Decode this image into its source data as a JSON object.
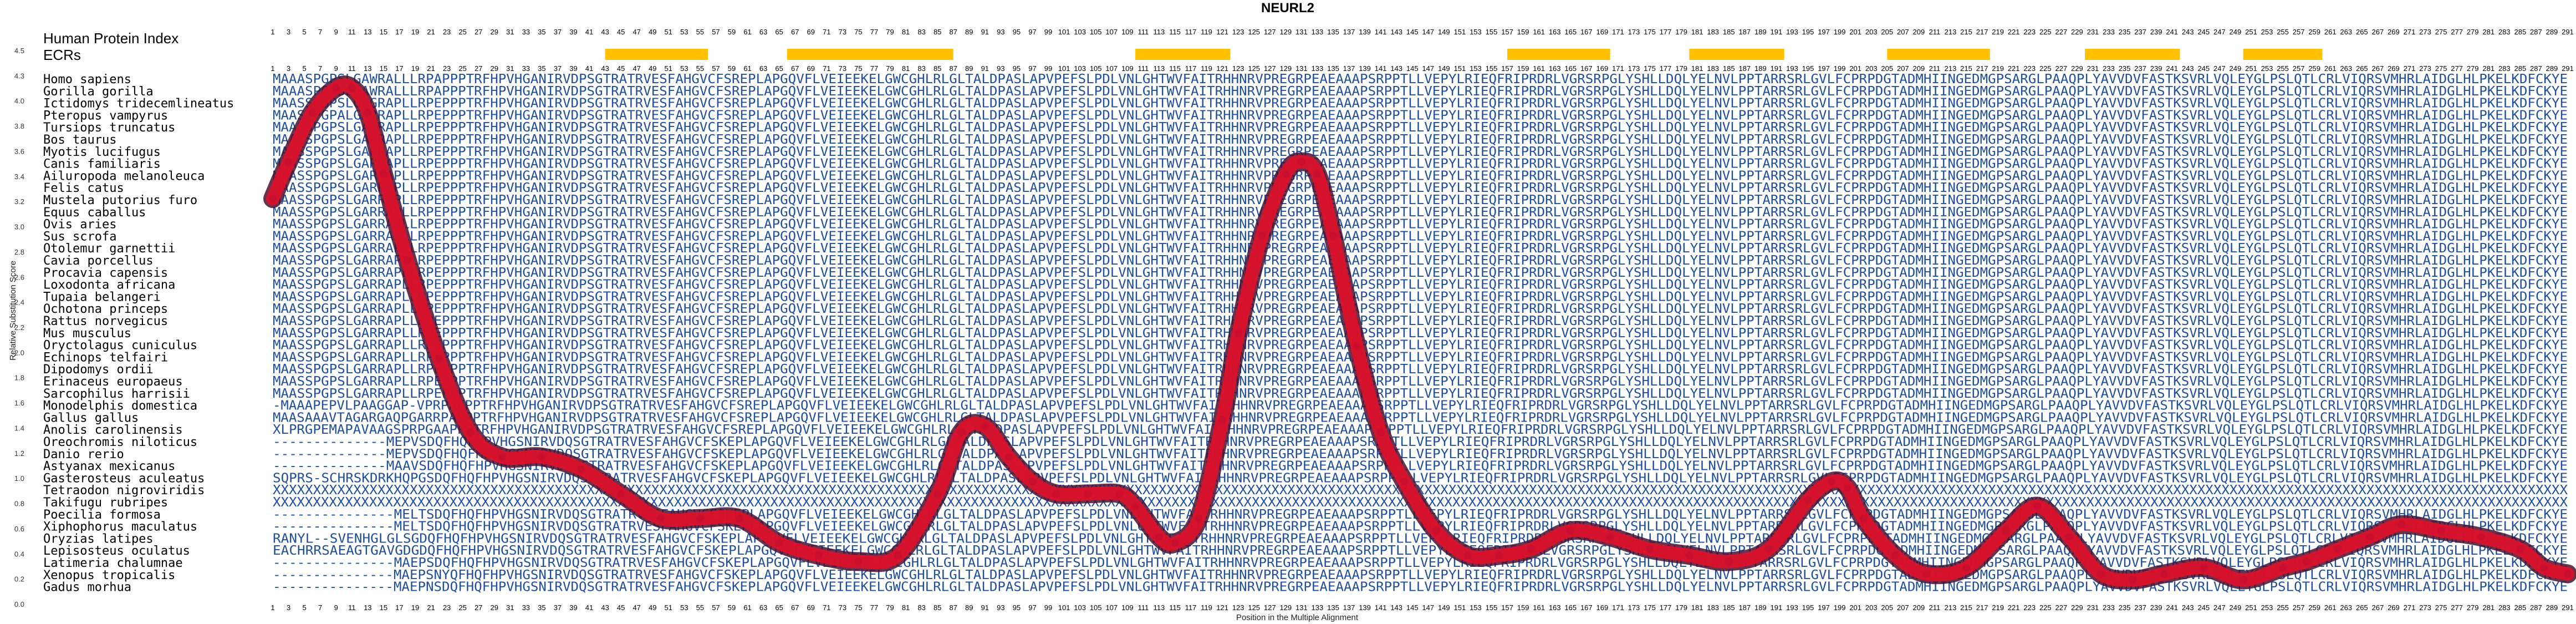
{
  "chart_data": {
    "type": "line",
    "title": "NEURL2",
    "xlabel": "Position in the Multiple Alignment",
    "ylabel": "Relative Substitution Score",
    "y_ticks": [
      "4.5",
      "4.3",
      "4.0",
      "3.8",
      "3.6",
      "3.4",
      "3.2",
      "3.0",
      "2.8",
      "2.6",
      "2.4",
      "2.2",
      "2.0",
      "1.8",
      "1.6",
      "1.4",
      "1.2",
      "1.0",
      "0.8",
      "0.6",
      "0.4",
      "0.2",
      "0.0"
    ],
    "ylim": [
      0,
      4.5
    ],
    "xlim": [
      1,
      291
    ],
    "labels": {
      "human_index": "Human Protein Index",
      "ecrs": "ECRs"
    },
    "ecr_regions": [
      [
        43,
        56
      ],
      [
        66,
        87
      ],
      [
        110,
        122
      ],
      [
        157,
        170
      ],
      [
        180,
        192
      ],
      [
        205,
        218
      ],
      [
        230,
        242
      ],
      [
        250,
        260
      ]
    ],
    "species": [
      "Homo sapiens",
      "Gorilla gorilla",
      "Ictidomys tridecemlineatus",
      "Pteropus vampyrus",
      "Tursiops truncatus",
      "Bos taurus",
      "Myotis lucifugus",
      "Canis familiaris",
      "Ailuropoda melanoleuca",
      "Felis catus",
      "Mustela putorius furo",
      "Equus caballus",
      "Ovis aries",
      "Sus scrofa",
      "Otolemur garnettii",
      "Cavia porcellus",
      "Procavia capensis",
      "Loxodonta africana",
      "Tupaia belangeri",
      "Ochotona princeps",
      "Rattus norvegicus",
      "Mus musculus",
      "Oryctolagus cuniculus",
      "Echinops telfairi",
      "Dipodomys ordii",
      "Erinaceus europaeus",
      "Sarcophilus harrisii",
      "Monodelphis domestica",
      "Gallus gallus",
      "Anolis carolinensis",
      "Oreochromis niloticus",
      "Danio rerio",
      "Astyanax mexicanus",
      "Gasterosteus aculeatus",
      "Tetraodon nigroviridis",
      "Takifugu rubripes",
      "Poecilia formosa",
      "Xiphophorus maculatus",
      "Oryzias latipes",
      "Lepisosteus oculatus",
      "Latimeria chalumnae",
      "Xenopus tropicalis",
      "Gadus morhua"
    ],
    "sequences": [
      "MAAASPGPSLGAWRALLLRPAPPPTRFHPVHGANIRVDPSGTRATRVESFAHGVCFSREPLAPGQVFLVEIEEKELGWCGHLRLGLTALDPASLAPVPEFSLPDLVNLGHTWVFAITRHHNRVPREGRPEAEAAAPSRPPTLLVEPYLRIEQFRIPRDRLVGRSRPGLYSHLLDQLYELNVLPPTARRSRLGVLFCPRPDGTADMHIINGEDMGPSARGLPAAQPLYAVVDVFASTKSVRLVQLEYGLPSLQTLCRLVIQRSVMHRLAIDGLHLPKELKDFCKYE",
      "MAAASPGPSLGAWRALLLRPAPPPTRFHPVHGANIRVDPSGTRATRVESFAHGVCFSREPLAPGQVFLVEIEEKELGWCGHLRLGLTALDPASLAPVPEFSLPDLVNLGHTWVFAITRHHNRVPREGRPEAEAAAPSRPPTLLVEPYLRIEQFRIPRDRLVGRSRPGLYSHLLDQLYELNVLPPTARRSRLGVLFCPRPDGTADMHIINGEDMGPSARGLPAAQPLYAVVDVFASTKSVRLVQLEYGLPSLQTLCRLVIQRSVMHRLAIDGLHLPKELKDFCKYE",
      "MAASSPGPSLGAGRAPLLRPEPPPTRFHPVHGANIRVDPSGTRATRVESFAHGVCFSREPLAPGQVFLVEIEEKELGWCGHLRLGLTALDPASLAPVPEFSLPDLVNLGHTWVFAITRHHNRVPREGRPEAEAAAPSRPPTLLVEPYLRIEQFRIPRDRLVGRSRPGLYSHLLDQLYELNVLPPTARRSRLGVLFCPRPDGTADMHIINGEDMGPSARGLPAAQPLYAVVDVFASTKSVRLVQLEYGLPSLQTLCRLVIQRSVMHRLAIDGLHLPKELKDFCKYE",
      "MAASSPGPALGARRAPLLRPEPPPTRFHPVHGANIRVDPSGTRATRVESFAHGVCFSREPLAPGQVFLVEIEEKELGWCGHLRLGLTALDPASLAPVPEFSLPDLVNLGHTWVFAITRHHNRVPREGRPEAEAAAPSRPPTLLVEPYLRIEQFRIPRDRLVGRSRPGLYSHLLDQLYELNVLPPTARRSRLGVLFCPRPDGTADMHIINGEDMGPSARGLPAAQPLYAVVDVFASTKSVRLVQLEYGLPSLQTLCRLVIQRSVMHRLAIDGLHLPKELKDFCKYE",
      "MAASSPGPSLGARRAPLLRPEPPPTRFHPVHGANIRVDPSGTRATRVESFAHGVCFSREPLAPGQVFLVEIEEKELGWCGHLRLGLTALDPASLAPVPEFSLPDLVNLGHTWVFAITRHHNRVPREGRPEAEAAAPSRPPTLLVEPYLRIEQFRIPRDRLVGRSRPGLYSHLLDQLYELNVLPPTARRSRLGVLFCPRPDGTADMHIINGEDMGPSARGLPAAQPLYAVVDVFASTKSVRLVQLEYGLPSLQTLCRLVIQRSVMHRLAIDGLHLPKELKDFCKYE",
      "MAASSPGPSLGARRAPLLRPEPPPTRFHPVHGANIRVDPSGTRATRVESFAHGVCFSREPLAPGQVFLVEIEEKELGWCGHLRLGLTALDPASLAPVPEFSLPDLVNLGHTWVFAITRHHNRVPREGRPEAEAAAPSRPPTLLVEPYLRIEQFRIPRDRLVGRSRPGLYSHLLDQLYELNVLPPTARRSRLGVLFCPRPDGTADMHIINGEDMGPSARGLPAAQPLYAVVDVFASTKSVRLVQLEYGLPSLQTLCRLVIQRSVMHRLAIDGLHLPKELKDFCKYE",
      "MAASSPGPSLGARRAPLLRPEPPPTRFHPVHGANIRVDPSGTRATRVESFAHGVCFSREPLAPGQVFLVEIEEKELGWCGHLRLGLTALDPASLAPVPEFSLPDLVNLGHTWVFAITRHHNRVPREGRPEAEAAAPSRPPTLLVEPYLRIEQFRIPRDRLVGRSRPGLYSHLLDQLYELNVLPPTARRSRLGVLFCPRPDGTADMHIINGEDMGPSARGLPAAQPLYAVVDVFASTKSVRLVQLEYGLPSLQTLCRLVIQRSVMHRLAIDGLHLPKELKDFCKYE",
      "MAASSPGPSLGARRAPLLRPEPPPTRFHPVHGANIRVDPSGTRATRVESFAHGVCFSREPLAPGQVFLVEIEEKELGWCGHLRLGLTALDPASLAPVPEFSLPDLVNLGHTWVFAITRHHNRVPREGRPEAEAAAPSRPPTLLVEPYLRIEQFRIPRDRLVGRSRPGLYSHLLDQLYELNVLPPTARRSRLGVLFCPRPDGTADMHIINGEDMGPSARGLPAAQPLYAVVDVFASTKSVRLVQLEYGLPSLQTLCRLVIQRSVMHRLAIDGLHLPKELKDFCKYE",
      "MAASSPGPSLGARRAPLLRPEPPPTRFHPVHGANIRVDPSGTRATRVESFAHGVCFSREPLAPGQVFLVEIEEKELGWCGHLRLGLTALDPASLAPVPEFSLPDLVNLGHTWVFAITRHHNRVPREGRPEAEAAAPSRPPTLLVEPYLRIEQFRIPRDRLVGRSRPGLYSHLLDQLYELNVLPPTARRSRLGVLFCPRPDGTADMHIINGEDMGPSARGLPAAQPLYAVVDVFASTKSVRLVQLEYGLPSLQTLCRLVIQRSVMHRLAIDGLHLPKELKDFCKYE",
      "MAASSPGPSLGARRAPLLRPEPPPTRFHPVHGANIRVDPSGTRATRVESFAHGVCFSREPLAPGQVFLVEIEEKELGWCGHLRLGLTALDPASLAPVPEFSLPDLVNLGHTWVFAITRHHNRVPREGRPEAEAAAPSRPPTLLVEPYLRIEQFRIPRDRLVGRSRPGLYSHLLDQLYELNVLPPTARRSRLGVLFCPRPDGTADMHIINGEDMGPSARGLPAAQPLYAVVDVFASTKSVRLVQLEYGLPSLQTLCRLVIQRSVMHRLAIDGLHLPKELKDFCKYE",
      "MAASSPGPSLGARRAPLLRPEPPPTRFHPVHGANIRVDPSGTRATRVESFAHGVCFSREPLAPGQVFLVEIEEKELGWCGHLRLGLTALDPASLAPVPEFSLPDLVNLGHTWVFAITRHHNRVPREGRPEAEAAAPSRPPTLLVEPYLRIEQFRIPRDRLVGRSRPGLYSHLLDQLYELNVLPPTARRSRLGVLFCPRPDGTADMHIINGEDMGPSARGLPAAQPLYAVVDVFASTKSVRLVQLEYGLPSLQTLCRLVIQRSVMHRLAIDGLHLPKELKDFCKYE",
      "MAASSPGPSLGARRAPLLRPEPPPTRFHPVHGANIRVDPSGTRATRVESFAHGVCFSREPLAPGQVFLVEIEEKELGWCGHLRLGLTALDPASLAPVPEFSLPDLVNLGHTWVFAITRHHNRVPREGRPEAEAAAPSRPPTLLVEPYLRIEQFRIPRDRLVGRSRPGLYSHLLDQLYELNVLPPTARRSRLGVLFCPRPDGTADMHIINGEDMGPSARGLPAAQPLYAVVDVFASTKSVRLVQLEYGLPSLQTLCRLVIQRSVMHRLAIDGLHLPKELKDFCKYE",
      "MAASSPGPSLGARRAPLLRPEPPPTRFHPVHGANIRVDPSGTRATRVESFAHGVCFSREPLAPGQVFLVEIEEKELGWCGHLRLGLTALDPASLAPVPEFSLPDLVNLGHTWVFAITRHHNRVPREGRPEAEAAAPSRPPTLLVEPYLRIEQFRIPRDRLVGRSRPGLYSHLLDQLYELNVLPPTARRSRLGVLFCPRPDGTADMHIINGEDMGPSARGLPAAQPLYAVVDVFASTKSVRLVQLEYGLPSLQTLCRLVIQRSVMHRLAIDGLHLPKELKDFCKYE",
      "MAASSPGPSLGARRAPLLRPEPPPTRFHPVHGANIRVDPSGTRATRVESFAHGVCFSREPLAPGQVFLVEIEEKELGWCGHLRLGLTALDPASLAPVPEFSLPDLVNLGHTWVFAITRHHNRVPREGRPEAEAAAPSRPPTLLVEPYLRIEQFRIPRDRLVGRSRPGLYSHLLDQLYELNVLPPTARRSRLGVLFCPRPDGTADMHIINGEDMGPSARGLPAAQPLYAVVDVFASTKSVRLVQLEYGLPSLQTLCRLVIQRSVMHRLAIDGLHLPKELKDFCKYE",
      "MAASSPGPSLGARRAPLLRPEPPPTRFHPVHGANIRVDPSGTRATRVESFAHGVCFSREPLAPGQVFLVEIEEKELGWCGHLRLGLTALDPASLAPVPEFSLPDLVNLGHTWVFAITRHHNRVPREGRPEAEAAAPSRPPTLLVEPYLRIEQFRIPRDRLVGRSRPGLYSHLLDQLYELNVLPPTARRSRLGVLFCPRPDGTADMHIINGEDMGPSARGLPAAQPLYAVVDVFASTKSVRLVQLEYGLPSLQTLCRLVIQRSVMHRLAIDGLHLPKELKDFCKYE",
      "MAASSPGPSLGARRAPLLRPEPPPTRFHPVHGANIRVDPSGTRATRVESFAHGVCFSREPLAPGQVFLVEIEEKELGWCGHLRLGLTALDPASLAPVPEFSLPDLVNLGHTWVFAITRHHNRVPREGRPEAEAAAPSRPPTLLVEPYLRIEQFRIPRDRLVGRSRPGLYSHLLDQLYELNVLPPTARRSRLGVLFCPRPDGTADMHIINGEDMGPSARGLPAAQPLYAVVDVFASTKSVRLVQLEYGLPSLQTLCRLVIQRSVMHRLAIDGLHLPKELKDFCKYE",
      "MAASSPGPSLGARRAPLLRPEPPPTRFHPVHGANIRVDPSGTRATRVESFAHGVCFSREPLAPGQVFLVEIEEKELGWCGHLRLGLTALDPASLAPVPEFSLPDLVNLGHTWVFAITRHHNRVPREGRPEAEAAAPSRPPTLLVEPYLRIEQFRIPRDRLVGRSRPGLYSHLLDQLYELNVLPPTARRSRLGVLFCPRPDGTADMHIINGEDMGPSARGLPAAQPLYAVVDVFASTKSVRLVQLEYGLPSLQTLCRLVIQRSVMHRLAIDGLHLPKELKDFCKYE",
      "MAASSPGPSLGARRAPLLRPEPPPTRFHPVHGANIRVDPSGTRATRVESFAHGVCFSREPLAPGQVFLVEIEEKELGWCGHLRLGLTALDPASLAPVPEFSLPDLVNLGHTWVFAITRHHNRVPREGRPEAEAAAPSRPPTLLVEPYLRIEQFRIPRDRLVGRSRPGLYSHLLDQLYELNVLPPTARRSRLGVLFCPRPDGTADMHIINGEDMGPSARGLPAAQPLYAVVDVFASTKSVRLVQLEYGLPSLQTLCRLVIQRSVMHRLAIDGLHLPKELKDFCKYE",
      "MAASSPGPSLGARRAPLLRPEPPPTRFHPVHGANIRVDPSGTRATRVESFAHGVCFSREPLAPGQVFLVEIEEKELGWCGHLRLGLTALDPASLAPVPEFSLPDLVNLGHTWVFAITRHHNRVPREGRPEAEAAAPSRPPTLLVEPYLRIEQFRIPRDRLVGRSRPGLYSHLLDQLYELNVLPPTARRSRLGVLFCPRPDGTADMHIINGEDMGPSARGLPAAQPLYAVVDVFASTKSVRLVQLEYGLPSLQTLCRLVIQRSVMHRLAIDGLHLPKELKDFCKYE",
      "MAASSPGPSLGARRAPLLRPEPPPTRFHPVHGANIRVDPSGTRATRVESFAHGVCFSREPLAPGQVFLVEIEEKELGWCGHLRLGLTALDPASLAPVPEFSLPDLVNLGHTWVFAITRHHNRVPREGRPEAEAAAPSRPPTLLVEPYLRIEQFRIPRDRLVGRSRPGLYSHLLDQLYELNVLPPTARRSRLGVLFCPRPDGTADMHIINGEDMGPSARGLPAAQPLYAVVDVFASTKSVRLVQLEYGLPSLQTLCRLVIQRSVMHRLAIDGLHLPKELKDFCKYE",
      "MAASSPGPSLGARRAPLLRPEPPPTRFHPVHGANIRVDPSGTRATRVESFAHGVCFSREPLAPGQVFLVEIEEKELGWCGHLRLGLTALDPASLAPVPEFSLPDLVNLGHTWVFAITRHHNRVPREGRPEAEAAAPSRPPTLLVEPYLRIEQFRIPRDRLVGRSRPGLYSHLLDQLYELNVLPPTARRSRLGVLFCPRPDGTADMHIINGEDMGPSARGLPAAQPLYAVVDVFASTKSVRLVQLEYGLPSLQTLCRLVIQRSVMHRLAIDGLHLPKELKDFCKYE",
      "MAASSPGPSLGARRAPLLRPEPPPTRFHPVHGANIRVDPSGTRATRVESFAHGVCFSREPLAPGQVFLVEIEEKELGWCGHLRLGLTALDPASLAPVPEFSLPDLVNLGHTWVFAITRHHNRVPREGRPEAEAAAPSRPPTLLVEPYLRIEQFRIPRDRLVGRSRPGLYSHLLDQLYELNVLPPTARRSRLGVLFCPRPDGTADMHIINGEDMGPSARGLPAAQPLYAVVDVFASTKSVRLVQLEYGLPSLQTLCRLVIQRSVMHRLAIDGLHLPKELKDFCKYE",
      "MAASSPGPSLGARRAPLLRPEPPPTRFHPVHGANIRVDPSGTRATRVESFAHGVCFSREPLAPGQVFLVEIEEKELGWCGHLRLGLTALDPASLAPVPEFSLPDLVNLGHTWVFAITRHHNRVPREGRPEAEAAAPSRPPTLLVEPYLRIEQFRIPRDRLVGRSRPGLYSHLLDQLYELNVLPPTARRSRLGVLFCPRPDGTADMHIINGEDMGPSARGLPAAQPLYAVVDVFASTKSVRLVQLEYGLPSLQTLCRLVIQRSVMHRLAIDGLHLPKELKDFCKYE",
      "MAASSPGPSLGARRAPLLRPEPPPTRFHPVHGANIRVDPSGTRATRVESFAHGVCFSREPLAPGQVFLVEIEEKELGWCGHLRLGLTALDPASLAPVPEFSLPDLVNLGHTWVFAITRHHNRVPREGRPEAEAAAPSRPPTLLVEPYLRIEQFRIPRDRLVGRSRPGLYSHLLDQLYELNVLPPTARRSRLGVLFCPRPDGTADMHIINGEDMGPSARGLPAAQPLYAVVDVFASTKSVRLVQLEYGLPSLQTLCRLVIQRSVMHRLAIDGLHLPKELKDFCKYE",
      "MAASSPGPSLGARRAPLLRPEPPPTRFHPVHGANIRVDPSGTRATRVESFAHGVCFSREPLAPGQVFLVEIEEKELGWCGHLRLGLTALDPASLAPVPEFSLPDLVNLGHTWVFAITRHHNRVPREGRPEAEAAAPSRPPTLLVEPYLRIEQFRIPRDRLVGRSRPGLYSHLLDQLYELNVLPPTARRSRLGVLFCPRPDGTADMHIINGEDMGPSARGLPAAQPLYAVVDVFASTKSVRLVQLEYGLPSLQTLCRLVIQRSVMHRLAIDGLHLPKELKDFCKYE",
      "MAASSPGPSLGARRAPLLRPEPPPTRFHPVHGANIRVDPSGTRATRVESFAHGVCFSREPLAPGQVFLVEIEEKELGWCGHLRLGLTALDPASLAPVPEFSLPDLVNLGHTWVFAITRHHNRVPREGRPEAEAAAPSRPPTLLVEPYLRIEQFRIPRDRLVGRSRPGLYSHLLDQLYELNVLPPTARRSRLGVLFCPRPDGTADMHIINGEDMGPSARGLPAAQPLYAVVDVFASTKSVRLVQLEYGLPSLQTLCRLVIQRSVMHRLAIDGLHLPKELKDFCKYE",
      "MAASSPGPSLGARRAPLLRPEPPPTRFHPVHGANIRVDPSGTRATRVESFAHGVCFSREPLAPGQVFLVEIEEKELGWCGHLRLGLTALDPASLAPVPEFSLPDLVNLGHTWVFAITRHHNRVPREGRPEAEAAAPSRPPTLLVEPYLRIEQFRIPRDRLVGRSRPGLYSHLLDQLYELNVLPPTARRSRLGVLFCPRPDGTADMHIINGEDMGPSARGLPAAQPLYAVVDVFASTKSVRLVQLEYGLPSLQTLCRLVIQRSVMHRLAIDGLHLPKELKDFCKYE",
      "-MAAAPEPVLPAAGGAP-VPRPAEPPTRFHPVHGANIRVDPSGTRATRVESFAHGVCFSREPLAPGQVFLVEIEEKELGWCGHLRLGLTALDPASLAPVPEFSLPDLVNLGHTWVFAITRHHNRVPREGRPEAEAAAPSRPPTLLVEPYLRIEQFRIPRDRLVGRSRPGLYSHLLDQLYELNVLPPTARRSRLGVLFCPRPDGTADMHIINGEDMGPSARGLPAAQPLYAVVDVFASTKSVRLVQLEYGLPSLQTLCRLVIQRSVMHRLAIDGLHLPKELKDFCKYE",
      "MAASAAAVTAGARGAQPGARRPAPPPTRFHPVHGANIRVDPSGTRATRVESFAHGVCFSREPLAPGQVFLVEIEEKELGWCGHLRLGLTALDPASLAPVPEFSLPDLVNLGHTWVFAITRHHNRVPREGRPEAEAAAPSRPPTLLVEPYLRIEQFRIPRDRLVGRSRPGLYSHLLDQLYELNVLPPTARRSRLGVLFCPRPDGTADMHIINGEDMGPSARGLPAAQPLYAVVDVFASTKSVRLVQLEYGLPSLQTLCRLVIQRSVMHRLAIDGLHLPKELKDFCKYE",
      "XLPRGPEMAPAVAAGSPRPGAAPPPTRFHPVHGANIRVDPSGTRATRVESFAHGVCFSREPLAPGQVFLVEIEEKELGWCGHLRLGLTALDPASLAPVPEFSLPDLVNLGHTWVFAITRHHNRVPREGRPEAEAAAPSRPPTLLVEPYLRIEQFRIPRDRLVGRSRPGLYSHLLDQLYELNVLPPTARRSRLGVLFCPRPDGTADMHIINGEDMGPSARGLPAAQPLYAVVDVFASTKSVRLVQLEYGLPSLQTLCRLVIQRSVMHRLAIDGLHLPKELKDFCKYE",
      "--------------MEPVSDQFHQFHPVHGSNIRVDQSGTRATRVESFAHGVCFSKEPLAPGQVFLVEIEEKELGWCGHLRLGLTALDPASLAPVPEFSLPDLVNLGHTWVFAITRHHNRVPREGRPEAEAAAPSRPPTLLVEPYLRIEQFRIPRDRLVGRSRPGLYSHLLDQLYELNVLPPTARRSRLGVLFCPRPDGTADMHIINGEDMGPSARGLPAAQPLYAVVDVFASTKSVRLVQLEYGLPSLQTLCRLVIQRSVMHRLAIDGLHLPKELKDFCKYE",
      "--------------MEPVSDQFHQFHPVHGSNIRVDQSGTRATRVESFAHGVCFSKEPLAPGQVFLVEIEEKELGWCGHLRLGLTALDPASLAPVPEFSLPDLVNLGHTWVFAITRHHNRVPREGRPEAEAAAPSRPPTLLVEPYLRIEQFRIPRDRLVGRSRPGLYSHLLDQLYELNVLPPTARRSRLGVLFCPRPDGTADMHIINGEDMGPSARGLPAAQPLYAVVDVFASTKSVRLVQLEYGLPSLQTLCRLVIQRSVMHRLAIDGLHLPKELKDFCKYE",
      "--------------MAAVSDQFHQFHPVHGSNIRVDQSGTRATRVESFAHGVCFSKEPLAPGQVFLVEIEEKELGWCGHLRLGLTALDPASLAPVPEFSLPDLVNLGHTWVFAITRHHNRVPREGRPEAEAAAPSRPPTLLVEPYLRIEQFRIPRDRLVGRSRPGLYSHLLDQLYELNVLPPTARRSRLGVLFCPRPDGTADMHIINGEDMGPSARGLPAAQPLYAVVDVFASTKSVRLVQLEYGLPSLQTLCRLVIQRSVMHRLAIDGLHLPKELKDFCKYE",
      "SQPRS-SCHRSKDRKHQPGSDQFHQFHPVHGSNIRVDQSGTRATRVESFAHGVCFSKEPLAPGQVFLVEIEEKELGWCGHLRLGLTALDPASLAPVPEFSLPDLVNLGHTWVFAITRHHNRVPREGRPEAEAAAPSRPPTLLVEPYLRIEQFRIPRDRLVGRSRPGLYSHLLDQLYELNVLPPTARRSRLGVLFCPRPDGTADMHIINGEDMGPSARGLPAAQPLYAVVDVFASTKSVRLVQLEYGLPSLQTLCRLVIQRSVMHRLAIDGLHLPKELKDFCKYE",
      "XXXXXXXXXXXXXXXXXXXXXXXXXXXXXXXXXXXXXXXXXXXXXXXXXXXXXXXXXXXXXXXXXXXXXXXXXXXXXXXXXXXXXXXXXXXXXXXXXXXXXXXXXXXXXXXXXXXXXXXXXXXXXXXXXXXXXXXXXXXXXXXXXXXXXXXXXXXXXXXXXXXXXXXXXXXXXXXXXXXXXXXXXXXXXXXXXXXXXXXXXXXXXXXXXXXXXXXXXXXXXXXXXXXXXXXXXXXXXXXXXXXXXXXXXXXXXXXXXXXXXXXXXXXXXXXXXXXXXXXXXXXXX",
      "XXXXXXXXXXXXXXXXXXXXXXXXXXXXXXXXXXXXXXXXXXXXXXXXXXXXXXXXXXXXXXXXXXXXXXXXXXXXXXXXXXXXXXXXXXXXXXXXXXXXXXXXXXXXXXXXXXXXXXXXXXXXXXXXXXXXXXXXXXXXXXXXXXXXXXXXXXXXXXXXXXXXXXXXXXXXXXXXXXXXXXXXXXXXXXXXXXXXXXXXXXXXXXXXXXXXXXXXXXXXXXXXXXXXXXXXXXXXXXXXXXXXXXXXXXXXXXXXXXXXXXXXXXXXXXXXXXXXXXXXXXXXXX",
      "---------------MELTSDQFHQFHPVHGSNIRVDQSGTRATRVESFAHGVCFSKEPLAPGQVFLVEIEEKELGWCGHLRLGLTALDPASLAPVPEFSLPDLVNLGHTWVFAITRHHNRVPREGRPEAEAAAPSRPPTLLVEPYLRIEQFRIPRDRLVGRSRPGLYSHLLDQLYELNVLPPTARRSRLGVLFCPRPDGTADMHIINGEDMGPSARGLPAAQPLYAVVDVFASTKSVRLVQLEYGLPSLQTLCRLVIQRSVMHRLAIDGLHLPKELKDFCKYE",
      "---------------MELTSDQFHQFHPVHGSNIRVDQSGTRATRVESFAHGVCFSKEPLAPGQVFLVEIEEKELGWCGHLRLGLTALDPASLAPVPEFSLPDLVNLGHTWVFAITRHHNRVPREGRPEAEAAAPSRPPTLLVEPYLRIEQFRIPRDRLVGRSRPGLYSHLLDQLYELNVLPPTARRSRLGVLFCPRPDGTADMHIINGEDMGPSARGLPAAQPLYAVVDVFASTKSVRLVQLEYGLPSLQTLCRLVIQRSVMHRLAIDGLHLPKELKDFCKYE",
      "RANYL--SVENHGLGLSGDQFHQFHPVHGSNIRVDQSGTRATRVESFAHGVCFSKEPLAPGQVFLVEIEEKELGWCGHLRLGLTALDPASLAPVPEFSLPDLVNLGHTWVFAITRHHNRVPREGRPEAEAAAPSRPPTLLVEPYLRIEQFRIPRDRLVGRSRPGLYSHLLDQLYELNVLPPTARRSRLGVLFCPRPDGTADMHIINGEDMGPSARGLPAAQPLYAVVDVFASTKSVRLVQLEYGLPSLQTLCRLVIQRSVMHRLAIDGLHLPKELKDFCKYE",
      "EACHRRSAEAGTGAVGDGDQFHQFHPVHGSNIRVDQSGTRATRVESFAHGVCFSKEPLAPGQVFLVEIEEKELGWCGHLRLGLTALDPASLAPVPEFSLPDLVNLGHTWVFAITRHHNRVPREGRPEAEAAAPSRPPTLLVEPYLRIEQFRIPRDRLVGRSRPGLYSHLLDQLYELNVLPPTARRSRLGVLFCPRPDGTADMHIINGEDMGPSARGLPAAQPLYAVVDVFASTKSVRLVQLEYGLPSLQTLCRLVIQRSVMHRLAIDGLHLPKELKDFCKYE",
      "---------------MAEPSDQFHQFHPVHGSNIRVDQSGTRATRVESFAHGVCFSKEPLAPGQVFLVEIEEKELGWCGHLRLGLTALDPASLAPVPEFSLPDLVNLGHTWVFAITRHHNRVPREGRPEAEAAAPSRPPTLLVEPYLRIEQFRIPRDRLVGRSRPGLYSHLLDQLYELNVLPPTARRSRLGVLFCPRPDGTADMHIINGEDMGPSARGLPAAQPLYAVVDVFASTKSVRLVQLEYGLPSLQTLCRLVIQRSVMHRLAIDGLHLPKELKDFCKYE",
      "---------------MAEPSNYQFHQFHPVHGSNIRVDQSGTRATRVESFAHGVCFSKEPLAPGQVFLVEIEEKELGWCGHLRLGLTALDPASLAPVPEFSLPDLVNLGHTWVFAITRHHNRVPREGRPEAEAAAPSRPPTLLVEPYLRIEQFRIPRDRLVGRSRPGLYSHLLDQLYELNVLPPTARRSRLGVLFCPRPDGTADMHIINGEDMGPSARGLPAAQPLYAVVDVFASTKSVRLVQLEYGLPSLQTLCRLVIQRSVMHRLAIDGLHLPKELKDFCKYE",
      "---------------MAEPNSDQFHQFHPVHGSNIRVDQSGTRATRVESFAHGVCFSKEPLAPGQVFLVEIEEKELGWCGHLRLGLTALDPASLAPVPEFSLPDLVNLGHTWVFAITRHHNRVPREGRPEAEAAAPSRPPTLLVEPYLRIEQFRIPRDRLVGRSRPGLYSHLLDQLYELNVLPPTARRSRLGVLFCPRPDGTADMHIINGEDMGPSARGLPAAQPLYAVVDVFASTKSVRLVQLEYGLPSLQTLCRLVIQRSVMHRLAIDGLHLPKELKDFCKYE"
    ],
    "series": [
      {
        "x": [
          1,
          3,
          6,
          9,
          11,
          13,
          15,
          18,
          22,
          26,
          30,
          35,
          40,
          45,
          50,
          55,
          60,
          65,
          70,
          75,
          80,
          85,
          88,
          91,
          94,
          97,
          100,
          104,
          108,
          110,
          113,
          115,
          118,
          121,
          123,
          126,
          129,
          131,
          133,
          135,
          138,
          141,
          144,
          148,
          152,
          156,
          160,
          165,
          170,
          175,
          180,
          185,
          190,
          195,
          198,
          200,
          202,
          206,
          210,
          215,
          220,
          224,
          228,
          232,
          236,
          240,
          245,
          250,
          255,
          258,
          262,
          266,
          270,
          275,
          280,
          285,
          288,
          291
        ],
        "y": [
          3.3,
          3.6,
          4.0,
          4.2,
          4.2,
          4.0,
          3.5,
          2.8,
          2.0,
          1.4,
          1.2,
          1.2,
          1.1,
          0.9,
          0.7,
          0.7,
          0.7,
          0.5,
          0.4,
          0.35,
          0.4,
          0.9,
          1.4,
          1.45,
          1.2,
          1.0,
          0.9,
          0.9,
          0.9,
          0.8,
          0.55,
          0.5,
          0.7,
          1.5,
          2.2,
          3.0,
          3.5,
          3.6,
          3.5,
          3.0,
          2.1,
          1.4,
          1.0,
          0.6,
          0.4,
          0.4,
          0.45,
          0.6,
          0.55,
          0.45,
          0.4,
          0.35,
          0.45,
          0.85,
          1.0,
          0.95,
          0.7,
          0.4,
          0.25,
          0.3,
          0.6,
          0.8,
          0.55,
          0.25,
          0.2,
          0.25,
          0.3,
          0.2,
          0.3,
          0.35,
          0.45,
          0.55,
          0.65,
          0.6,
          0.55,
          0.45,
          0.3,
          0.25
        ]
      }
    ]
  }
}
